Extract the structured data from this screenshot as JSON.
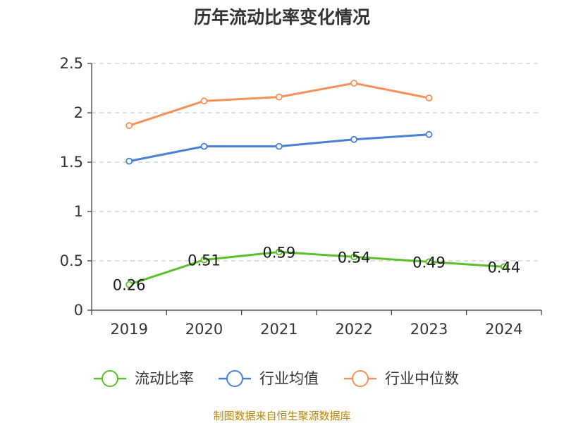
{
  "chart_data": {
    "type": "line",
    "title": "历年流动比率变化情况",
    "categories": [
      "2019",
      "2020",
      "2021",
      "2022",
      "2023",
      "2024"
    ],
    "ylim": [
      0,
      2.5
    ],
    "yticks": [
      "0",
      "0.5",
      "1",
      "1.5",
      "2",
      "2.5"
    ],
    "grid": true,
    "legend_position": "bottom",
    "series": [
      {
        "name": "流动比率",
        "color": "#5cbf2a",
        "values": [
          0.26,
          0.51,
          0.59,
          0.54,
          0.49,
          0.44
        ],
        "data_labels": [
          "0.26",
          "0.51",
          "0.59",
          "0.54",
          "0.49",
          "0.44"
        ]
      },
      {
        "name": "行业均值",
        "color": "#4a7fd6",
        "values": [
          1.51,
          1.66,
          1.66,
          1.73,
          1.78,
          null
        ]
      },
      {
        "name": "行业中位数",
        "color": "#f4905a",
        "values": [
          1.87,
          2.12,
          2.16,
          2.3,
          2.15,
          null
        ]
      }
    ],
    "source": "制图数据来自恒生聚源数据库"
  }
}
